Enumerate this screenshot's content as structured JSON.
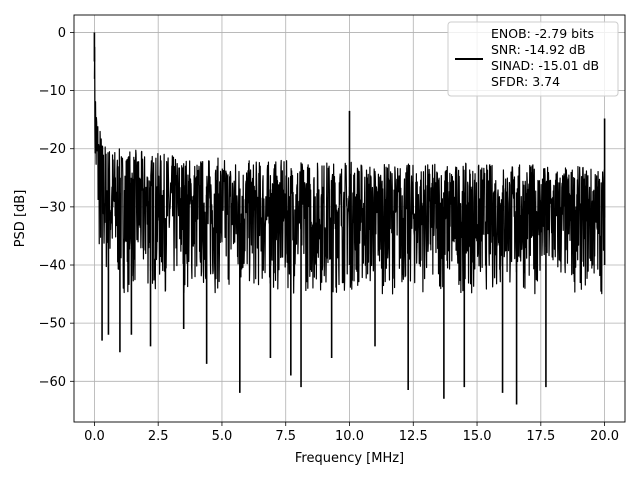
{
  "chart_data": {
    "type": "line",
    "title": "",
    "xlabel": "Frequency [MHz]",
    "ylabel": "PSD [dB]",
    "xlim": [
      -0.8,
      20.8
    ],
    "ylim": [
      -67,
      3
    ],
    "xticks": [
      0.0,
      2.5,
      5.0,
      7.5,
      10.0,
      12.5,
      15.0,
      17.5,
      20.0
    ],
    "xtick_labels": [
      "0.0",
      "2.5",
      "5.0",
      "7.5",
      "10.0",
      "12.5",
      "15.0",
      "17.5",
      "20.0"
    ],
    "yticks": [
      0,
      -10,
      -20,
      -30,
      -40,
      -50,
      -60
    ],
    "ytick_labels": [
      "0",
      "−10",
      "−20",
      "−30",
      "−40",
      "−50",
      "−60"
    ],
    "grid": true,
    "legend_position": "upper right",
    "series_color": "#000000",
    "legend_lines": [
      "ENOB: -2.79 bits",
      "SNR: -14.92 dB",
      "SINAD: -15.01 dB",
      "SFDR: 3.74"
    ],
    "series": [
      {
        "x": [
          0.0,
          0.02,
          0.05,
          0.1,
          0.2,
          0.3,
          0.5,
          1.0,
          1.5,
          2.0,
          3.0,
          4.0,
          5.0,
          6.0,
          7.0,
          8.0,
          9.0,
          10.0,
          11.0,
          12.0,
          13.0,
          14.0,
          15.0,
          16.0,
          17.0,
          18.0,
          19.0,
          20.0
        ],
        "upper": [
          0,
          -3,
          -8,
          -12,
          -15,
          -18,
          -19,
          -20,
          -20,
          -20.5,
          -21,
          -21.5,
          -21.5,
          -22,
          -22,
          -22,
          -22,
          -22,
          -22.5,
          -22.5,
          -22.5,
          -22.5,
          -22.5,
          -22.5,
          -22.5,
          -23,
          -23,
          -23
        ],
        "lower": [
          -8,
          -25,
          -33,
          -36,
          -40,
          -42,
          -44,
          -45,
          -45,
          -45,
          -45,
          -45,
          -45,
          -45,
          -45,
          -45,
          -45,
          -45,
          -45,
          -45,
          -45,
          -45,
          -45,
          -45,
          -45,
          -45,
          -45,
          -45
        ]
      }
    ],
    "spikes": [
      {
        "x": 0.0,
        "y": 0
      },
      {
        "x": 0.3,
        "y": -53
      },
      {
        "x": 0.55,
        "y": -52
      },
      {
        "x": 1.0,
        "y": -55
      },
      {
        "x": 1.45,
        "y": -52
      },
      {
        "x": 2.2,
        "y": -54
      },
      {
        "x": 3.5,
        "y": -51
      },
      {
        "x": 4.4,
        "y": -57
      },
      {
        "x": 5.7,
        "y": -62
      },
      {
        "x": 6.9,
        "y": -56
      },
      {
        "x": 7.7,
        "y": -59
      },
      {
        "x": 8.1,
        "y": -61
      },
      {
        "x": 9.3,
        "y": -56
      },
      {
        "x": 10.0,
        "y": -13.5
      },
      {
        "x": 11.0,
        "y": -54
      },
      {
        "x": 12.3,
        "y": -61.5
      },
      {
        "x": 13.7,
        "y": -63
      },
      {
        "x": 14.5,
        "y": -61
      },
      {
        "x": 16.0,
        "y": -62
      },
      {
        "x": 16.55,
        "y": -64
      },
      {
        "x": 17.7,
        "y": -61
      },
      {
        "x": 20.0,
        "y": -14.8
      }
    ]
  }
}
